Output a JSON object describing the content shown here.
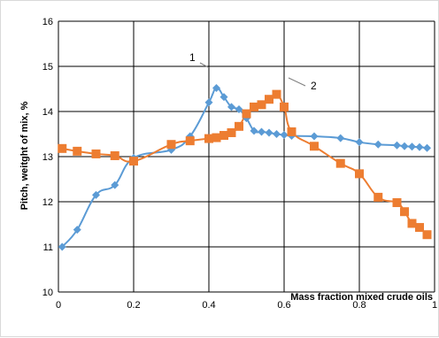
{
  "chart_data": {
    "type": "line",
    "xlabel": "Mass fraction mixed crude oils",
    "ylabel": "Pitch, weitght of mix, %",
    "xlim": [
      0,
      1
    ],
    "ylim": [
      10,
      16
    ],
    "x_ticks": [
      "0",
      "0.2",
      "0.4",
      "0.6",
      "0.8",
      "1"
    ],
    "x_tick_values": [
      0,
      0.2,
      0.4,
      0.6,
      0.8,
      1
    ],
    "y_ticks": [
      "10",
      "11",
      "12",
      "13",
      "14",
      "15",
      "16"
    ],
    "y_tick_values": [
      10,
      11,
      12,
      13,
      14,
      15,
      16
    ],
    "grid": true,
    "annotations": [
      {
        "text": "1",
        "series": 0
      },
      {
        "text": "2",
        "series": 1
      }
    ],
    "series": [
      {
        "marker": "diamond",
        "color": "#5b9bd5",
        "x": [
          0.01,
          0.05,
          0.1,
          0.15,
          0.2,
          0.3,
          0.35,
          0.4,
          0.42,
          0.44,
          0.46,
          0.48,
          0.5,
          0.52,
          0.54,
          0.56,
          0.58,
          0.6,
          0.62,
          0.68,
          0.75,
          0.8,
          0.85,
          0.9,
          0.92,
          0.94,
          0.96,
          0.98
        ],
        "y": [
          11.0,
          11.38,
          12.15,
          12.37,
          12.97,
          13.15,
          13.45,
          14.2,
          14.52,
          14.32,
          14.1,
          14.05,
          13.85,
          13.57,
          13.55,
          13.53,
          13.5,
          13.48,
          13.46,
          13.45,
          13.41,
          13.32,
          13.27,
          13.25,
          13.23,
          13.22,
          13.21,
          13.19
        ]
      },
      {
        "marker": "square",
        "color": "#ed7d31",
        "x": [
          0.01,
          0.05,
          0.1,
          0.15,
          0.2,
          0.3,
          0.35,
          0.4,
          0.42,
          0.44,
          0.46,
          0.48,
          0.5,
          0.52,
          0.54,
          0.56,
          0.58,
          0.6,
          0.62,
          0.68,
          0.75,
          0.8,
          0.85,
          0.9,
          0.92,
          0.94,
          0.96,
          0.98
        ],
        "y": [
          13.18,
          13.12,
          13.06,
          13.02,
          12.9,
          13.27,
          13.35,
          13.4,
          13.42,
          13.47,
          13.53,
          13.67,
          13.95,
          14.1,
          14.15,
          14.27,
          14.38,
          14.1,
          13.55,
          13.23,
          12.85,
          12.62,
          12.1,
          11.98,
          11.78,
          11.52,
          11.43,
          11.27
        ]
      }
    ]
  }
}
